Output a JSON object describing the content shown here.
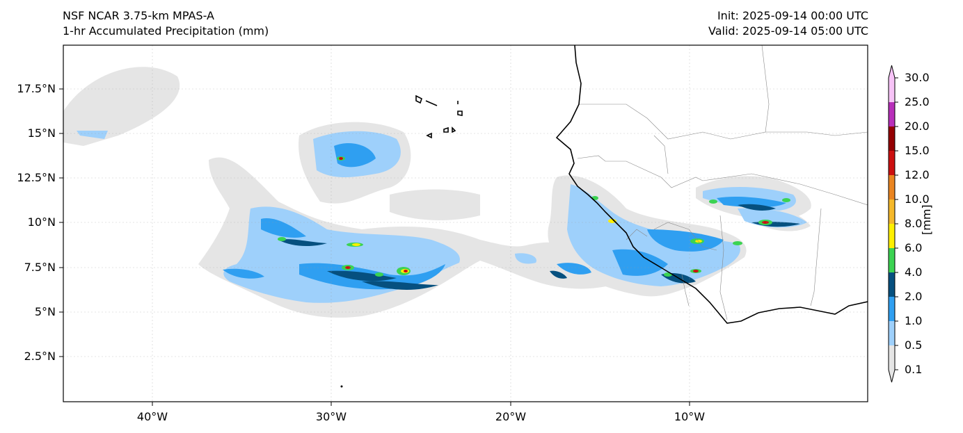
{
  "header": {
    "title_line1": "NSF NCAR 3.75-km MPAS-A",
    "title_line2": "1-hr Accumulated Precipitation (mm)",
    "init": "Init: 2025-09-14 00:00 UTC",
    "valid": "Valid: 2025-09-14 05:00 UTC"
  },
  "map": {
    "lat_labels": [
      "17.5°N",
      "15°N",
      "12.5°N",
      "10°N",
      "7.5°N",
      "5°N",
      "2.5°N"
    ],
    "lon_labels": [
      "40°W",
      "30°W",
      "20°W",
      "10°W"
    ]
  },
  "colorbar": {
    "units": "[mm]",
    "levels": [
      "0.1",
      "0.5",
      "1.0",
      "2.0",
      "4.0",
      "6.0",
      "8.0",
      "10.0",
      "12.0",
      "15.0",
      "20.0",
      "25.0",
      "30.0"
    ],
    "colors": [
      "#e5e5e5",
      "#9ed0fb",
      "#2f9ff1",
      "#06507f",
      "#3bd352",
      "#fff000",
      "#f5b82a",
      "#ea8521",
      "#cc1010",
      "#950002",
      "#b82fba",
      "#f7c3f7"
    ]
  }
}
